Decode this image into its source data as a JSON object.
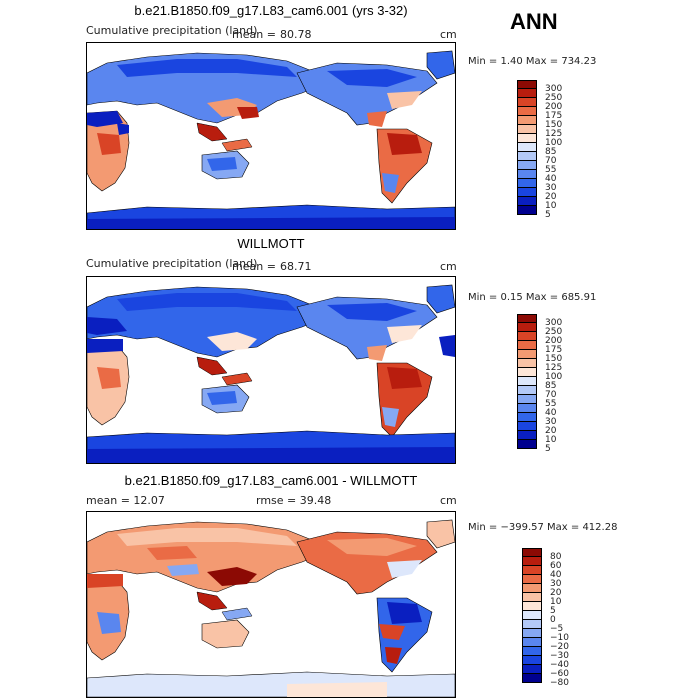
{
  "season": "ANN",
  "panels": [
    {
      "title": "b.e21.B1850.f09_g17.L83_cam6.001 (yrs 3-32)",
      "left_label": "Cumulative precipitation (land)",
      "mean_label": "mean =",
      "mean_value": "80.78",
      "units": "cm",
      "min_max": "Min =    1.40 Max =  734.23",
      "levels": [
        "5",
        "10",
        "20",
        "30",
        "40",
        "55",
        "70",
        "85",
        "100",
        "125",
        "150",
        "175",
        "200",
        "250",
        "300"
      ]
    },
    {
      "title": "WILLMOTT",
      "left_label": "Cumulative precipitation (land)",
      "mean_label": "mean =",
      "mean_value": "68.71",
      "units": "cm",
      "min_max": "Min =    0.15 Max =  685.91",
      "levels": [
        "5",
        "10",
        "20",
        "30",
        "40",
        "55",
        "70",
        "85",
        "100",
        "125",
        "150",
        "175",
        "200",
        "250",
        "300"
      ]
    },
    {
      "title": "b.e21.B1850.f09_g17.L83_cam6.001 - WILLMOTT",
      "left_label": "mean =   12.07",
      "rmse_label": "rmse =   39.48",
      "units": "cm",
      "min_max": "Min = −399.57 Max =  412.28",
      "levels": [
        "−80",
        "−60",
        "−40",
        "−30",
        "−20",
        "−10",
        "−5",
        "0",
        "5",
        "10",
        "20",
        "30",
        "40",
        "60",
        "80"
      ]
    }
  ],
  "colors": {
    "abs_scale": [
      "#00008f",
      "#0a1fc0",
      "#1a45e0",
      "#3266ea",
      "#5a86ef",
      "#86a8f3",
      "#b3c9f7",
      "#dde7fb",
      "#fde6d8",
      "#f9c3a6",
      "#f39a72",
      "#ea6b45",
      "#d94426",
      "#b81d0e",
      "#8c0a04"
    ],
    "diff_scale": [
      "#00008f",
      "#0a1fc0",
      "#1a45e0",
      "#3266ea",
      "#5a86ef",
      "#86a8f3",
      "#b3c9f7",
      "#dde7fb",
      "#fde6d8",
      "#f9c3a6",
      "#f39a72",
      "#ea6b45",
      "#d94426",
      "#b81d0e",
      "#8c0a04"
    ]
  }
}
